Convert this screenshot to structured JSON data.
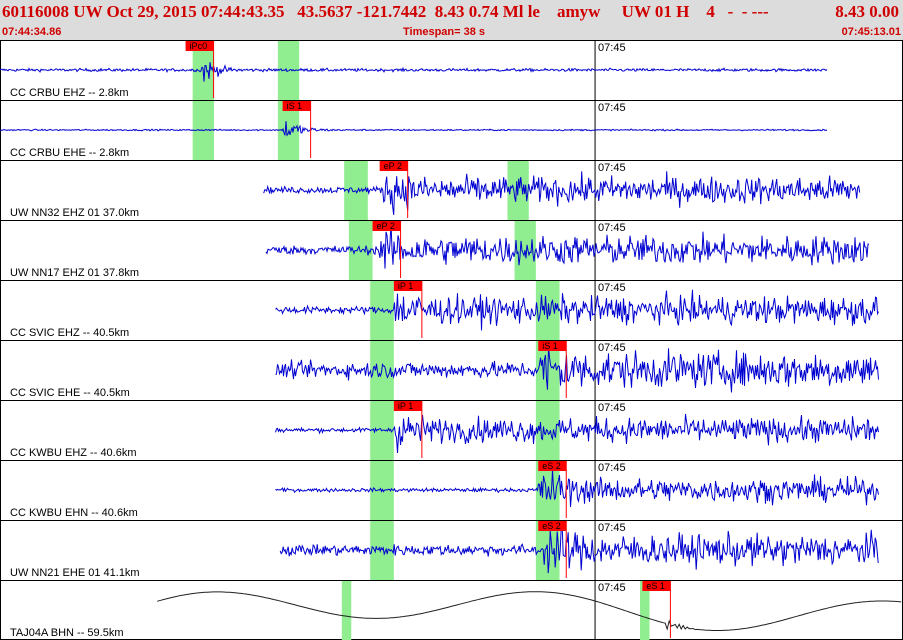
{
  "header": {
    "title": "60116008 UW Oct 29, 2015 07:44:43.35   43.5637 -121.7442  8.43 0.74 Ml le    amyw     UW 01 H    4   -  - ---",
    "right_value": "8.43 0.00",
    "start_time": "07:44:34.86",
    "timespan_label": "Timespan=  38 s",
    "end_time": "07:45:13.01"
  },
  "colors": {
    "header_bg": "#dcdcdc",
    "header_text": "#d00000",
    "trace": "#0000d0",
    "trace_long_period": "#202020",
    "pick_flag": "#ff0000",
    "pick_window": "#90ee90"
  },
  "chart_data": {
    "type": "line",
    "title": "",
    "x_range": [
      34.86,
      73.01
    ],
    "time_tick": {
      "label": "07:45",
      "x": 60.0
    },
    "panels": [
      {
        "label": "CC CRBU EHZ -- 2.8km",
        "start": 34.86,
        "end": 69.8,
        "onset": 43.3,
        "amp": 0.55,
        "noise": 0.04,
        "decay": 0.09,
        "type": "local",
        "picks": [
          {
            "label": "iPc0",
            "x": 42.7
          }
        ],
        "windows": [
          [
            43.0,
            43.9
          ],
          [
            46.6,
            47.5
          ]
        ]
      },
      {
        "label": "CC CRBU EHE -- 2.8km",
        "start": 34.86,
        "end": 69.8,
        "onset": 46.8,
        "amp": 0.5,
        "noise": 0.02,
        "decay": 0.08,
        "type": "local",
        "picks": [
          {
            "label": "iS 1",
            "x": 46.8
          }
        ],
        "windows": [
          [
            43.0,
            43.9
          ],
          [
            46.6,
            47.5
          ]
        ]
      },
      {
        "label": "UW NN32 EHZ 01 37.0km",
        "start": 46.0,
        "end": 71.2,
        "onset": 51.0,
        "amp": 0.62,
        "noise": 0.09,
        "decay": 0.02,
        "type": "regional",
        "picks": [
          {
            "label": "eP 2",
            "x": 50.9
          }
        ],
        "windows": [
          [
            49.4,
            50.4
          ],
          [
            56.3,
            57.2
          ]
        ]
      },
      {
        "label": "UW NN17 EHZ 01 37.8km",
        "start": 46.1,
        "end": 71.6,
        "onset": 50.9,
        "amp": 0.6,
        "noise": 0.12,
        "decay": 0.02,
        "type": "regional",
        "picks": [
          {
            "label": "eP 2",
            "x": 50.6
          }
        ],
        "windows": [
          [
            49.6,
            50.6
          ],
          [
            56.6,
            57.5
          ]
        ]
      },
      {
        "label": "CC SVIC EHZ -- 40.5km",
        "start": 46.5,
        "end": 72.0,
        "onset": 51.5,
        "amp": 0.62,
        "noise": 0.1,
        "decay": 0.02,
        "type": "regional",
        "picks": [
          {
            "label": "iP 1",
            "x": 51.5
          }
        ],
        "windows": [
          [
            50.5,
            51.5
          ],
          [
            57.5,
            58.5
          ]
        ]
      },
      {
        "label": "CC SVIC EHE -- 40.5km",
        "start": 46.5,
        "end": 72.0,
        "onset": 57.6,
        "amp": 0.6,
        "noise": 0.22,
        "decay": 0.015,
        "type": "regional",
        "picks": [
          {
            "label": "iS 1",
            "x": 57.6
          }
        ],
        "windows": [
          [
            50.5,
            51.5
          ],
          [
            57.5,
            58.5
          ]
        ]
      },
      {
        "label": "CC KWBU EHZ -- 40.6km",
        "start": 46.5,
        "end": 72.0,
        "onset": 51.5,
        "amp": 0.6,
        "noise": 0.06,
        "decay": 0.02,
        "type": "regional",
        "picks": [
          {
            "label": "iP 1",
            "x": 51.5
          }
        ],
        "windows": [
          [
            50.5,
            51.5
          ],
          [
            57.5,
            58.5
          ]
        ]
      },
      {
        "label": "CC KWBU EHN -- 40.6km",
        "start": 46.5,
        "end": 72.0,
        "onset": 57.6,
        "amp": 0.6,
        "noise": 0.05,
        "decay": 0.015,
        "type": "regional",
        "picks": [
          {
            "label": "eS 2",
            "x": 57.6
          }
        ],
        "windows": [
          [
            50.5,
            51.5
          ],
          [
            57.5,
            58.5
          ]
        ]
      },
      {
        "label": "UW NN21 EHE 01 41.1km",
        "start": 46.7,
        "end": 72.0,
        "onset": 57.8,
        "amp": 0.6,
        "noise": 0.15,
        "decay": 0.015,
        "type": "regional",
        "picks": [
          {
            "label": "eS 2",
            "x": 57.6
          }
        ],
        "windows": [
          [
            50.5,
            51.5
          ],
          [
            57.5,
            58.5
          ]
        ]
      },
      {
        "label": "TAJ04A BHN -- 59.5km",
        "start": 41.5,
        "end": 73.01,
        "onset": 63.0,
        "amp": 0.25,
        "noise": 0.0,
        "decay": 0.3,
        "type": "longperiod",
        "picks": [
          {
            "label": "eS 1",
            "x": 62.0
          }
        ],
        "windows": [
          [
            49.3,
            49.7
          ],
          [
            61.9,
            62.3
          ]
        ]
      }
    ]
  }
}
